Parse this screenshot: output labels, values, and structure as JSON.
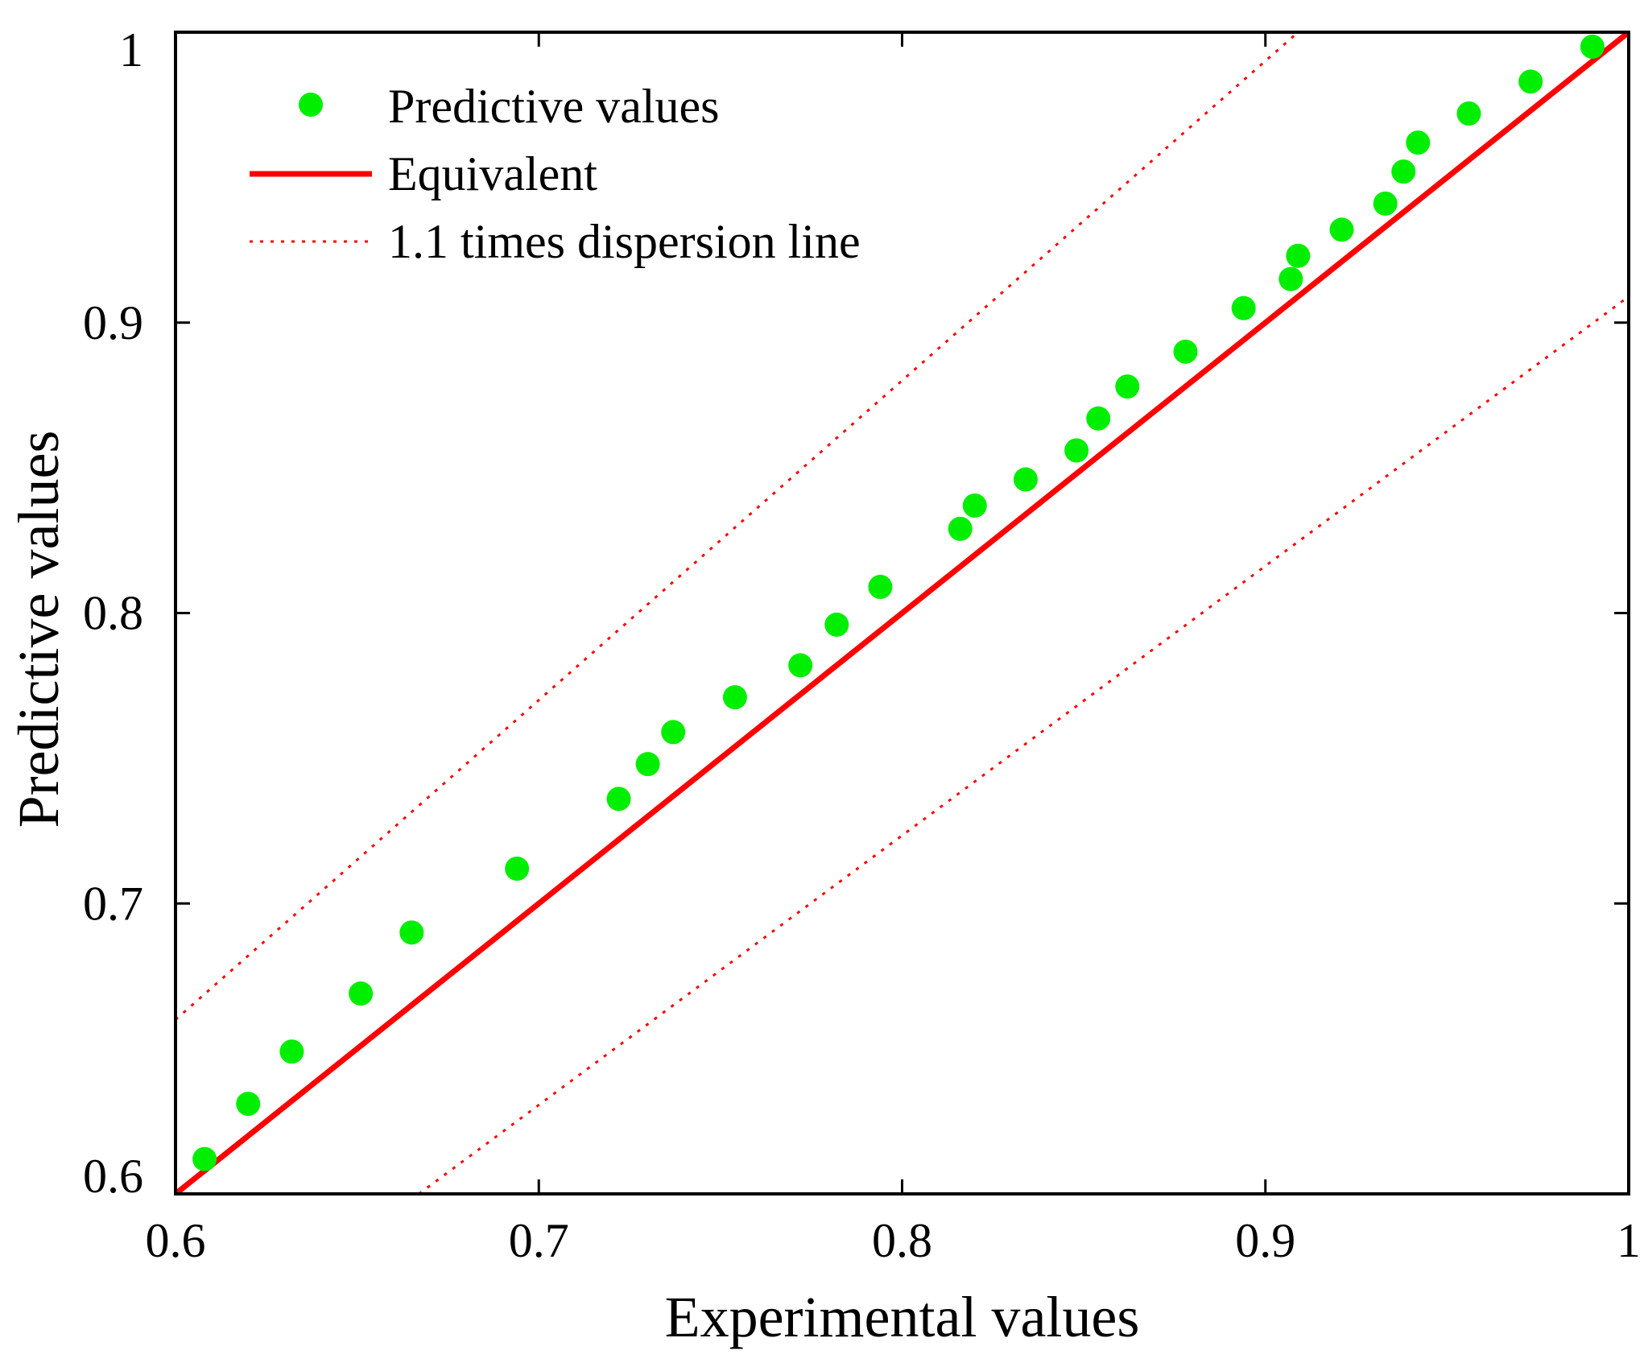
{
  "chart_data": {
    "type": "scatter",
    "title": "",
    "xlabel": "Experimental values",
    "ylabel": "Predictive values",
    "xlim": [
      0.6,
      1.0
    ],
    "ylim": [
      0.6,
      1.0
    ],
    "x_ticks": [
      0.6,
      0.7,
      0.8,
      0.9,
      1.0
    ],
    "x_tick_labels": [
      "0.6",
      "0.7",
      "0.8",
      "0.9",
      "1"
    ],
    "y_ticks": [
      0.6,
      0.7,
      0.8,
      0.9,
      1.0
    ],
    "y_tick_labels": [
      "0.6",
      "0.7",
      "0.8",
      "0.9",
      "1"
    ],
    "legend_position": "top-left",
    "colors": {
      "points": "#00ee00",
      "lines": "#ff0000",
      "axes": "#000000"
    },
    "series": [
      {
        "name": "Predictive values",
        "kind": "scatter",
        "x": [
          0.608,
          0.62,
          0.632,
          0.651,
          0.665,
          0.694,
          0.722,
          0.73,
          0.737,
          0.754,
          0.772,
          0.782,
          0.794,
          0.816,
          0.82,
          0.834,
          0.848,
          0.854,
          0.862,
          0.878,
          0.894,
          0.907,
          0.909,
          0.921,
          0.933,
          0.938,
          0.942,
          0.956,
          0.973,
          0.99
        ],
        "y": [
          0.612,
          0.631,
          0.649,
          0.669,
          0.69,
          0.712,
          0.736,
          0.748,
          0.759,
          0.771,
          0.782,
          0.796,
          0.809,
          0.829,
          0.837,
          0.846,
          0.856,
          0.867,
          0.878,
          0.89,
          0.905,
          0.915,
          0.923,
          0.932,
          0.941,
          0.952,
          0.962,
          0.972,
          0.983,
          0.995
        ]
      },
      {
        "name": "Equivalent",
        "kind": "line",
        "style": "solid",
        "x": [
          0.6,
          1.0
        ],
        "y": [
          0.6,
          1.0
        ]
      },
      {
        "name": "1.1 times dispersion line",
        "kind": "line",
        "style": "dotted",
        "lines": [
          {
            "x": [
              0.6,
              0.909
            ],
            "y": [
              0.66,
              1.0
            ]
          },
          {
            "x": [
              0.667,
              1.0
            ],
            "y": [
              0.6,
              0.909
            ]
          }
        ]
      }
    ]
  }
}
